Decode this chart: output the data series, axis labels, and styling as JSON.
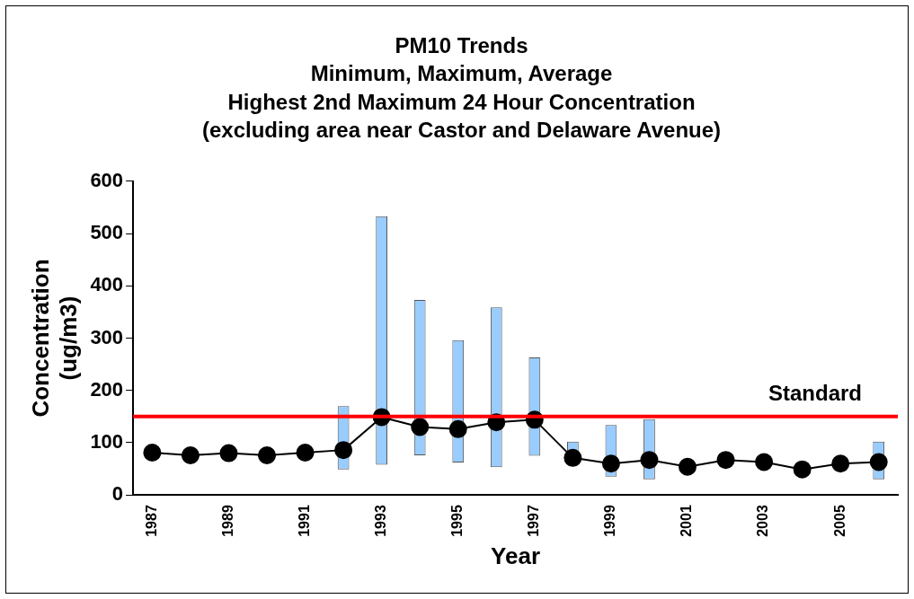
{
  "chart_data": {
    "type": "bar",
    "title": "PM10 Trends\nMinimum, Maximum, Average\nHighest 2nd Maximum 24 Hour Concentration\n(excluding area near Castor and Delaware Avenue)",
    "xlabel": "Year",
    "ylabel": "Concentration\n(ug/m3)",
    "categories": [
      "1987",
      null,
      "1989",
      null,
      "1991",
      null,
      "1993",
      null,
      "1995",
      null,
      "1997",
      null,
      "1999",
      null,
      "2001",
      null,
      "2003",
      null,
      "2005",
      null
    ],
    "series": [
      {
        "color": "#99ccff",
        "base": [
          null,
          null,
          null,
          null,
          null,
          49,
          58,
          76,
          62,
          53,
          75,
          60,
          35,
          30,
          null,
          null,
          null,
          null,
          null,
          30
        ],
        "values": [
          null,
          null,
          null,
          null,
          null,
          121,
          475,
          297,
          234,
          306,
          188,
          42,
          99,
          115,
          null,
          null,
          null,
          null,
          null,
          72
        ]
      },
      {
        "type": "line",
        "color": "#000000",
        "marker": "circle",
        "values": [
          81,
          76,
          80,
          76,
          81,
          86,
          149,
          130,
          126,
          139,
          144,
          71,
          60,
          67,
          54,
          67,
          63,
          49,
          60,
          63
        ]
      }
    ],
    "ylim": [
      0,
      600
    ],
    "yticks": [
      0,
      100,
      200,
      300,
      400,
      500,
      600
    ],
    "grid": false,
    "legend": false,
    "ref_lines": [
      {
        "axis": "y",
        "value": 150,
        "label": "Standard",
        "color": "#ff0000"
      }
    ]
  }
}
